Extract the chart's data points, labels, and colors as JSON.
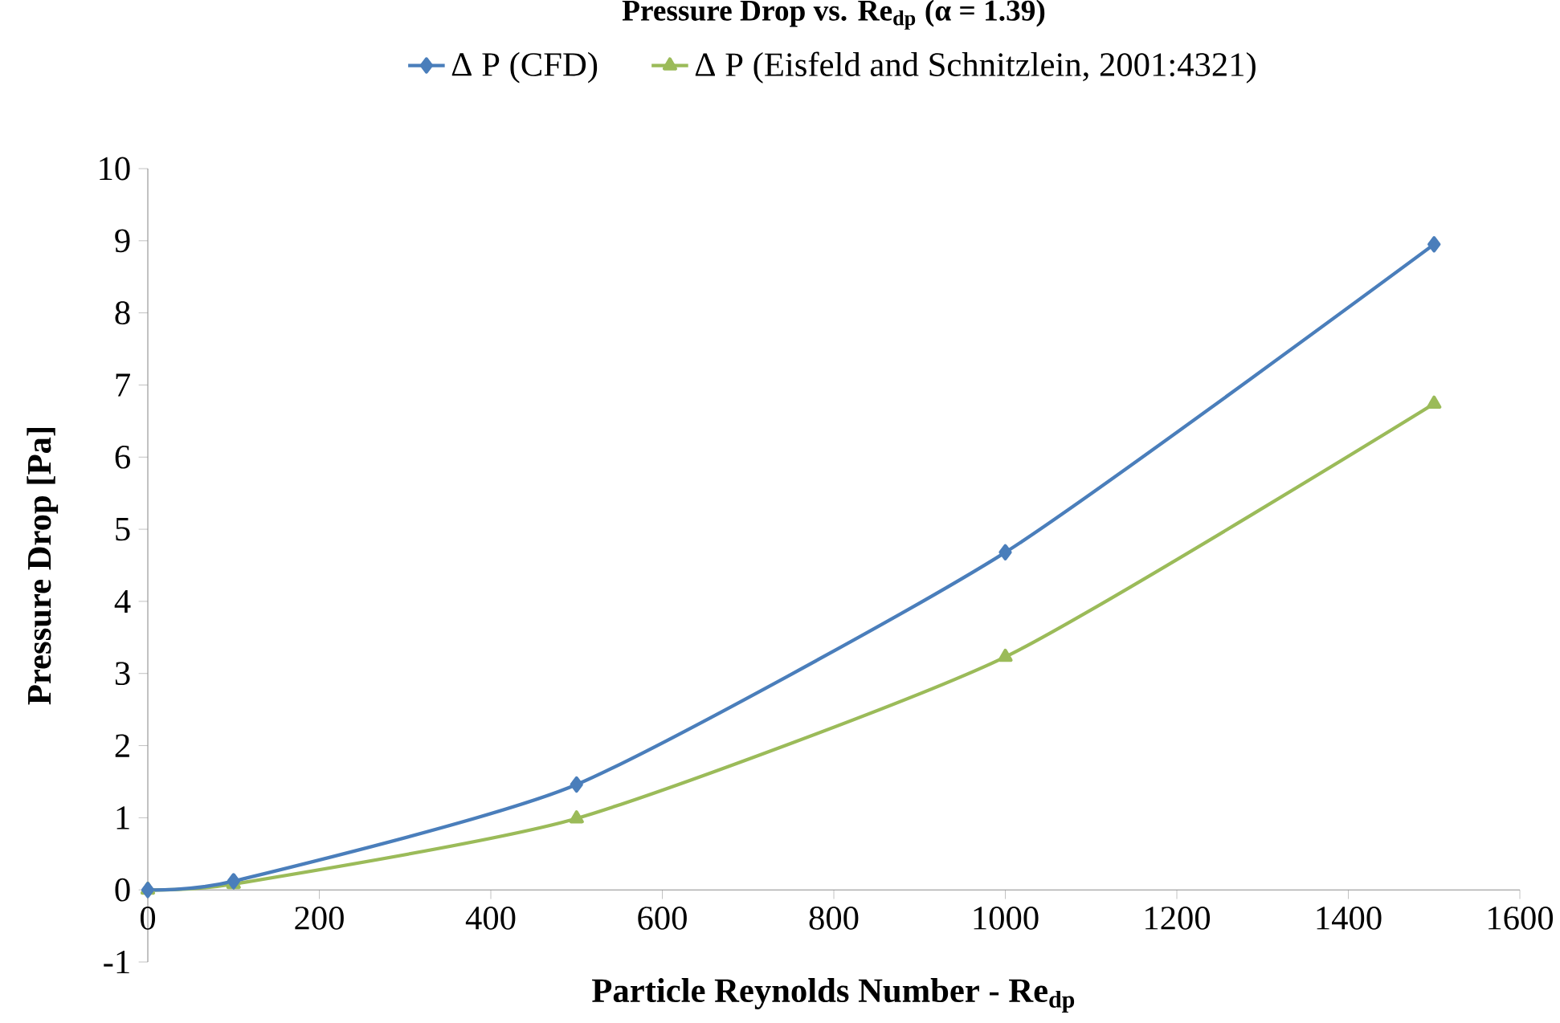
{
  "chart_data": {
    "type": "line",
    "title": "**Pressure Drop vs. Re$_{dp}$ (α = 1.39)**",
    "xlabel": "**Particle Reynolds Number - Re$_{dp}$**",
    "ylabel": "**Pressure Drop [Pa]**",
    "x": [
      0,
      100,
      500,
      1000,
      1500
    ],
    "series": [
      {
        "name": "Δ P (CFD)",
        "color": "#4a7ebb",
        "marker": "diamond",
        "values": [
          0,
          0.12,
          1.46,
          4.68,
          8.95
        ]
      },
      {
        "name": "Δ P (Eisfeld and Schnitzlein, 2001:4321)",
        "color": "#9bbb59",
        "marker": "triangle",
        "values": [
          0,
          0.08,
          0.99,
          3.23,
          6.74
        ]
      }
    ],
    "xlim": [
      0,
      1600
    ],
    "xticks": [
      0,
      200,
      400,
      600,
      800,
      1000,
      1200,
      1400,
      1600
    ],
    "ylim": [
      -1,
      10
    ],
    "yticks": [
      -1,
      0,
      1,
      2,
      3,
      4,
      5,
      6,
      7,
      8,
      9,
      10
    ],
    "legend": "top"
  }
}
